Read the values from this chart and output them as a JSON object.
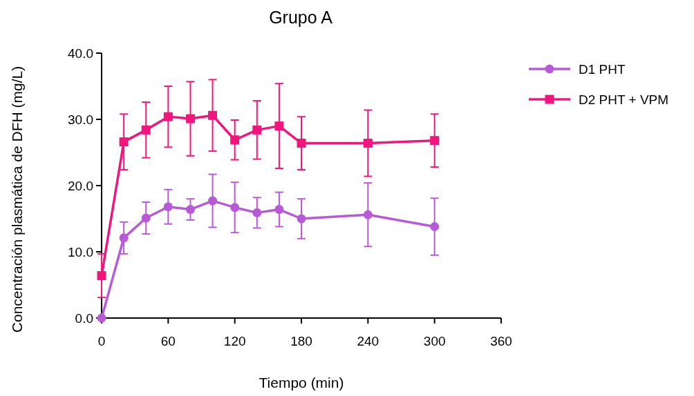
{
  "chart_data": {
    "type": "line",
    "title": "Grupo A",
    "xlabel": "Tiempo (min)",
    "ylabel": "Concentración plasmática de DFH (mg/L)",
    "x": [
      0,
      20,
      40,
      60,
      80,
      100,
      120,
      140,
      160,
      180,
      240,
      300
    ],
    "xlim": [
      0,
      360
    ],
    "xticks": [
      0,
      60,
      120,
      180,
      240,
      300,
      360
    ],
    "ylim": [
      0,
      40
    ],
    "yticks": [
      {
        "value": 0,
        "label": "0.0"
      },
      {
        "value": 10,
        "label": "10.0"
      },
      {
        "value": 20,
        "label": "20.0"
      },
      {
        "value": 30,
        "label": "30.0"
      },
      {
        "value": 40,
        "label": "40.0"
      }
    ],
    "grid": false,
    "legend": "top right",
    "series": [
      {
        "name": "D1 PHT",
        "color": "#b85ad8",
        "marker": "circle",
        "values": [
          0,
          12.1,
          15.1,
          16.8,
          16.4,
          17.7,
          16.7,
          15.9,
          16.4,
          15.0,
          15.6,
          13.8
        ],
        "errors": [
          null,
          2.4,
          2.4,
          2.6,
          1.6,
          4.0,
          3.8,
          2.3,
          2.6,
          3.0,
          4.8,
          4.3
        ]
      },
      {
        "name": "D2 PHT + VPM",
        "color": "#f0167e",
        "marker": "square",
        "values": [
          6.4,
          26.6,
          28.4,
          30.4,
          30.1,
          30.6,
          26.9,
          28.4,
          29.0,
          26.4,
          26.4,
          26.8
        ],
        "errors": [
          3.3,
          4.2,
          4.2,
          4.6,
          5.6,
          5.4,
          3.0,
          4.4,
          6.4,
          4.0,
          5.0,
          4.0
        ]
      }
    ]
  }
}
